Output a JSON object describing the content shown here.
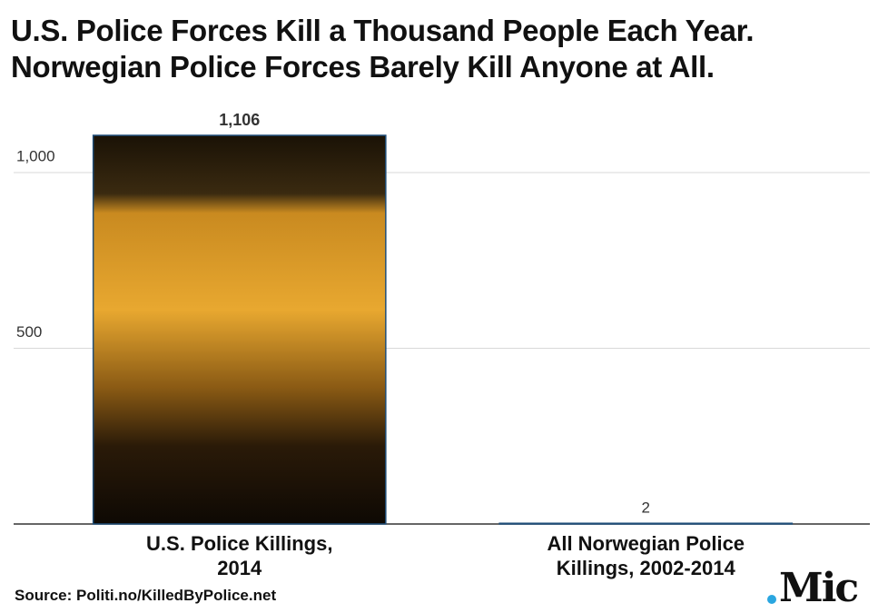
{
  "chart_data": {
    "type": "bar",
    "title": "U.S. Police Forces Kill a Thousand People Each Year.\nNorwegian Police Forces Barely Kill Anyone at All.",
    "categories": [
      "U.S. Police Killings,\n2014",
      "All Norwegian Police\nKillings, 2002-2014"
    ],
    "values": [
      1106,
      2
    ],
    "value_labels": [
      "1,106",
      "2"
    ],
    "ylim": [
      0,
      1150
    ],
    "yticks": [
      500,
      {
        "value": 1000,
        "label": "1,000"
      }
    ],
    "grid": true,
    "source": "Source: Politi.no/KilledByPolice.net",
    "logo": "Mic"
  }
}
